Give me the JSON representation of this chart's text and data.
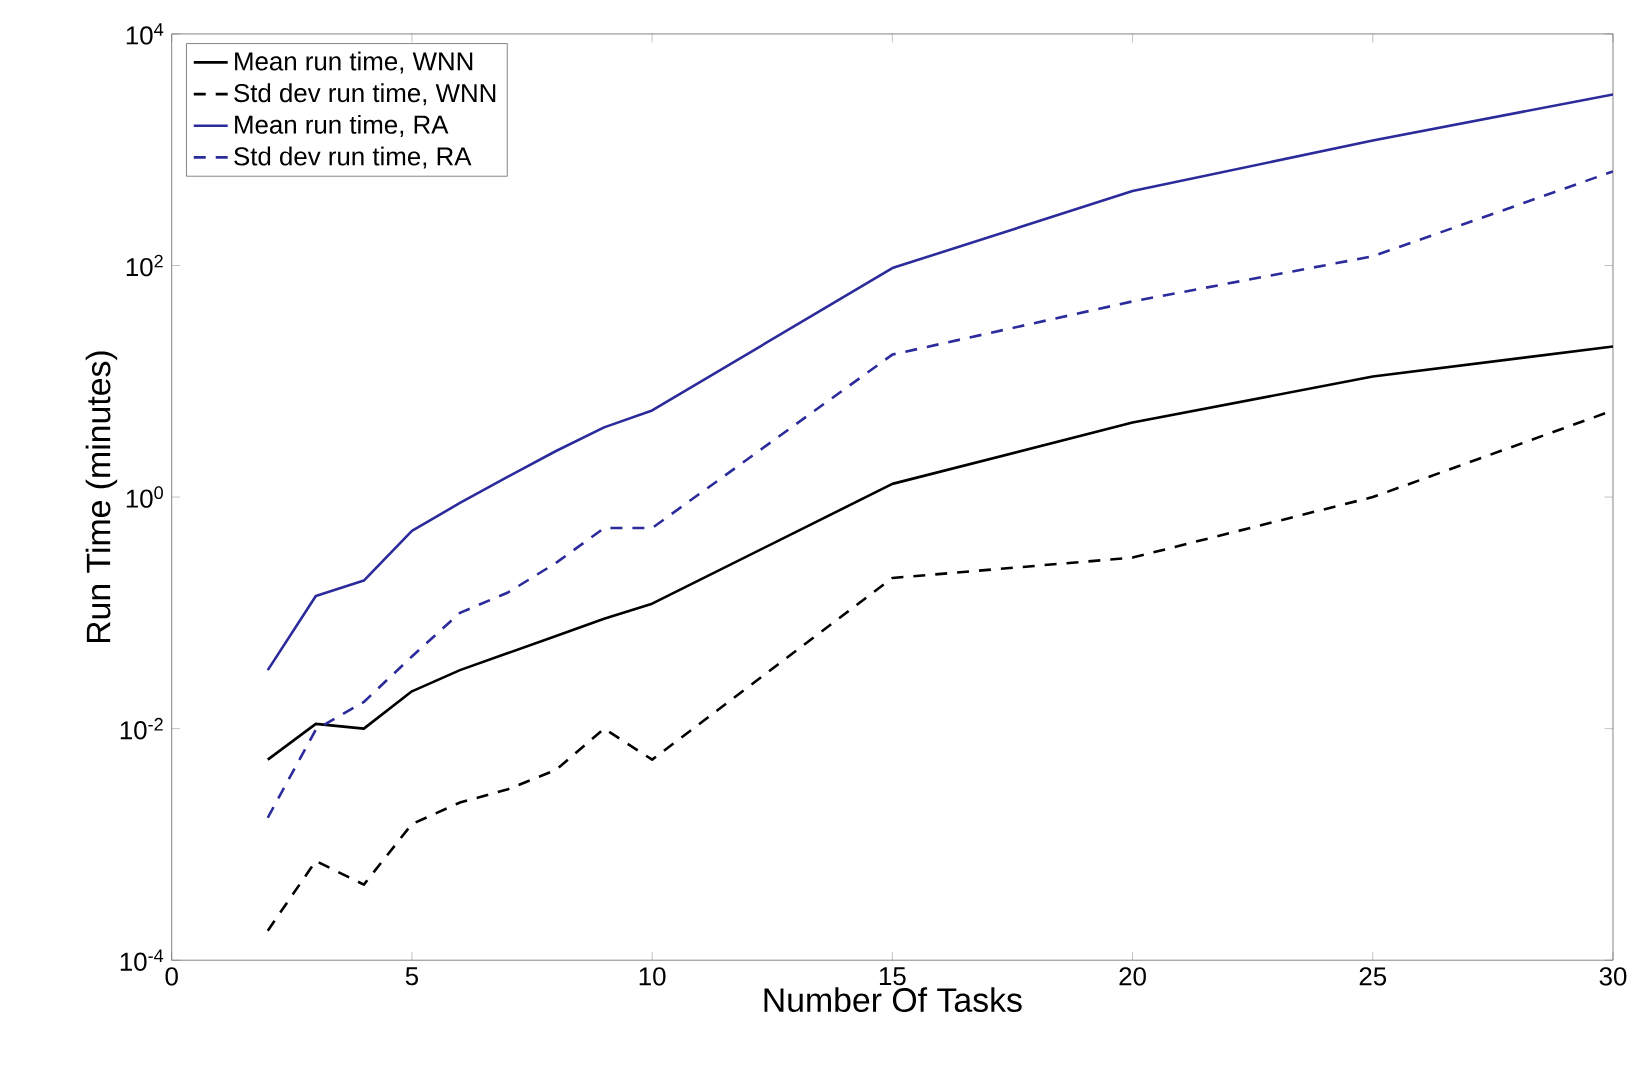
{
  "chart_data": {
    "type": "line",
    "xlabel": "Number Of Tasks",
    "ylabel": "Run Time (minutes)",
    "x": [
      2,
      3,
      4,
      5,
      6,
      7,
      8,
      9,
      10,
      15,
      20,
      25,
      30
    ],
    "series": [
      {
        "name": "Mean run time, WNN",
        "color": "#000000",
        "line_style": "solid",
        "values": [
          0.0054,
          0.011,
          0.01,
          0.021,
          0.032,
          0.045,
          0.063,
          0.089,
          0.12,
          1.3,
          4.4,
          11,
          20
        ]
      },
      {
        "name": "Std dev run time, WNN",
        "color": "#000000",
        "line_style": "dashed",
        "values": [
          0.00018,
          0.00072,
          0.00045,
          0.0015,
          0.0023,
          0.003,
          0.0044,
          0.01,
          0.0054,
          0.2,
          0.3,
          1.0,
          5.6
        ]
      },
      {
        "name": "Mean run time, RA",
        "color": "#2b2b9b",
        "line_style": "solid",
        "values": [
          0.032,
          0.14,
          0.19,
          0.51,
          0.89,
          1.5,
          2.5,
          4.0,
          5.6,
          95,
          440,
          1200,
          3000
        ]
      },
      {
        "name": "Std dev run time, RA",
        "color": "#2b2b9b",
        "line_style": "dashed",
        "values": [
          0.0017,
          0.0098,
          0.017,
          0.042,
          0.1,
          0.15,
          0.27,
          0.54,
          0.54,
          17,
          49,
          120,
          650
        ]
      }
    ],
    "log": "y",
    "xlim": [
      0,
      30
    ],
    "ylim": [
      0.0001,
      10000
    ],
    "xticks": [
      0,
      5,
      10,
      15,
      20,
      25,
      30
    ],
    "yticks": [
      {
        "value": 0.0001,
        "label": "10$^{-4}$"
      },
      {
        "value": 0.01,
        "label": "10$^{-2}$"
      },
      {
        "value": 1,
        "label": "10$^{0}$"
      },
      {
        "value": 100,
        "label": "10$^{2}$"
      },
      {
        "value": 10000,
        "label": "10$^{4}$"
      }
    ],
    "grid": false,
    "legend": "top left",
    "marker": "none"
  }
}
